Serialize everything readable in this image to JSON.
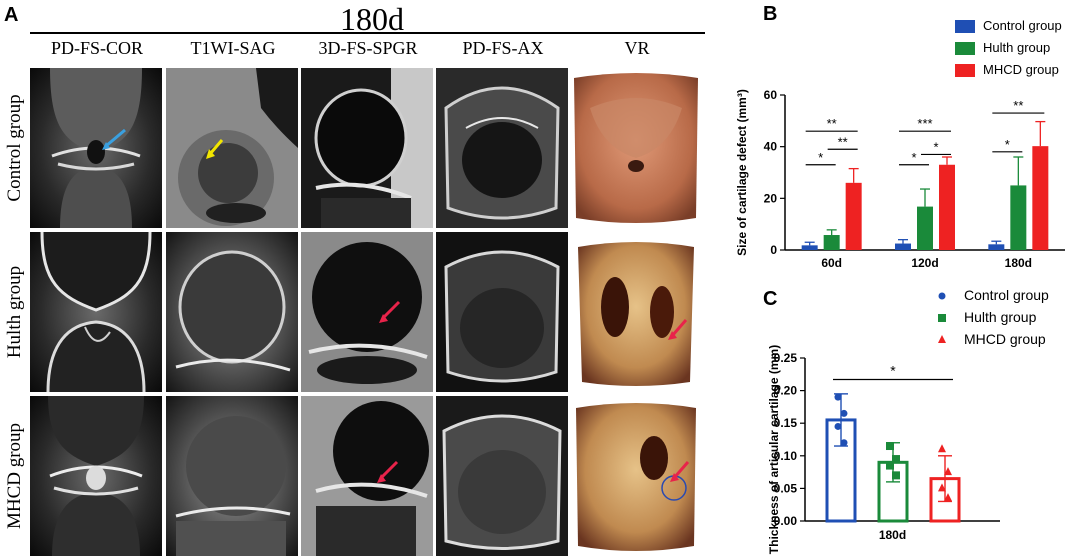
{
  "panel_a": {
    "letter": "A",
    "timepoint": "180d",
    "columns": [
      "PD-FS-COR",
      "T1WI-SAG",
      "3D-FS-SPGR",
      "PD-FS-AX",
      "VR"
    ],
    "rows": [
      "Control group",
      "Hulth group",
      "MHCD group"
    ]
  },
  "panel_b": {
    "letter": "B"
  },
  "panel_c": {
    "letter": "C"
  },
  "colors": {
    "control": "#1f4fb4",
    "hulth": "#1a8a3a",
    "mhcd": "#ee2222",
    "blue_arrow": "#3aa0e0",
    "yellow_arrow": "#f2e600",
    "red_arrow": "#e8234a"
  },
  "chart_data": [
    {
      "type": "bar",
      "panel": "B",
      "categories": [
        "60d",
        "120d",
        "180d"
      ],
      "series": [
        {
          "name": "Control group",
          "values": [
            1.8,
            2.5,
            2.2
          ],
          "errors": [
            1.2,
            1.5,
            1.2
          ]
        },
        {
          "name": "Hulth group",
          "values": [
            5.8,
            16.8,
            25.0
          ],
          "errors": [
            2.0,
            6.8,
            11.0
          ]
        },
        {
          "name": "MHCD group",
          "values": [
            26.0,
            33.0,
            40.2
          ],
          "errors": [
            5.5,
            3.0,
            9.5
          ]
        }
      ],
      "ylabel": "Size of cartilage defect (mm³)",
      "ylim": [
        0,
        60
      ],
      "yticks": [
        0,
        20,
        40,
        60
      ],
      "legend": "top-right",
      "significance": [
        {
          "group": "60d",
          "from": "Control group",
          "to": "MHCD group",
          "label": "**",
          "y": 46
        },
        {
          "group": "60d",
          "from": "Control group",
          "to": "Hulth group",
          "label": "*",
          "y": 33
        },
        {
          "group": "60d",
          "from": "Hulth group",
          "to": "MHCD group",
          "label": "**",
          "y": 39
        },
        {
          "group": "120d",
          "from": "Control group",
          "to": "MHCD group",
          "label": "***",
          "y": 46
        },
        {
          "group": "120d",
          "from": "Control group",
          "to": "Hulth group",
          "label": "*",
          "y": 33
        },
        {
          "group": "120d",
          "from": "Hulth group",
          "to": "MHCD group",
          "label": "*",
          "y": 37
        },
        {
          "group": "180d",
          "from": "Control group",
          "to": "MHCD group",
          "label": "**",
          "y": 53
        },
        {
          "group": "180d",
          "from": "Control group",
          "to": "Hulth group",
          "label": "*",
          "y": 38
        }
      ]
    },
    {
      "type": "bar",
      "panel": "C",
      "categories": [
        "180d"
      ],
      "series": [
        {
          "name": "Control group",
          "values": [
            0.155
          ],
          "errors": [
            0.04
          ],
          "points": [
            0.19,
            0.165,
            0.145,
            0.12
          ]
        },
        {
          "name": "Hulth group",
          "values": [
            0.09
          ],
          "errors": [
            0.03
          ],
          "points": [
            0.115,
            0.095,
            0.085,
            0.07
          ]
        },
        {
          "name": "MHCD group",
          "values": [
            0.065
          ],
          "errors": [
            0.035
          ],
          "points": [
            0.11,
            0.075,
            0.05,
            0.035
          ]
        }
      ],
      "ylabel": "Thickness of articular cartilage (mm)",
      "ylim": [
        0,
        0.25
      ],
      "yticks": [
        "0.00",
        "0.05",
        "0.10",
        "0.15",
        "0.20",
        "0.25"
      ],
      "legend": "top-right",
      "significance": [
        {
          "from": "Control group",
          "to": "MHCD group",
          "label": "*",
          "y": 0.217
        }
      ]
    }
  ]
}
